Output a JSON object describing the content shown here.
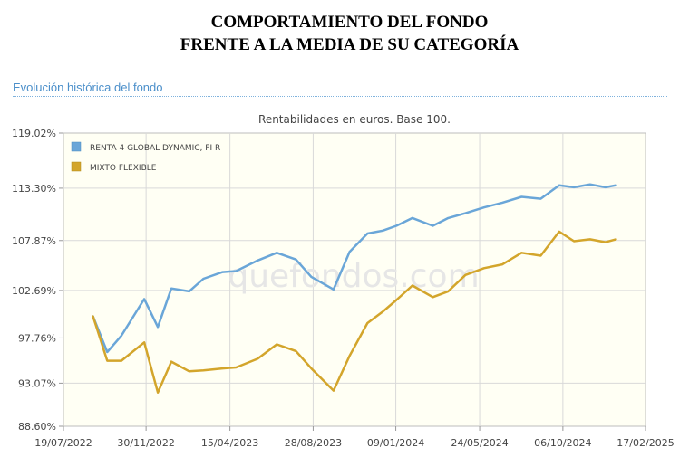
{
  "header": {
    "title_line1": "COMPORTAMIENTO DEL FONDO",
    "title_line2": "FRENTE A LA MEDIA DE SU CATEGORÍA",
    "section": "Evolución histórica del fondo",
    "watermark": "quefondos.com"
  },
  "colors": {
    "fund": "#6aa6d8",
    "category": "#d3a52b",
    "plot_bg": "#fffff4"
  },
  "chart_data": {
    "type": "line",
    "title": "Rentabilidades en euros. Base 100.",
    "x": [
      "2022-09-05",
      "2022-09-28",
      "2022-10-21",
      "2022-11-27",
      "2022-12-19",
      "2023-01-10",
      "2023-02-08",
      "2023-03-03",
      "2023-04-03",
      "2023-04-25",
      "2023-05-30",
      "2023-06-30",
      "2023-07-31",
      "2023-08-25",
      "2023-09-30",
      "2023-10-26",
      "2023-11-24",
      "2023-12-19",
      "2024-01-10",
      "2024-02-05",
      "2024-03-09",
      "2024-04-03",
      "2024-05-01",
      "2024-05-31",
      "2024-06-30",
      "2024-07-31",
      "2024-08-31",
      "2024-09-30",
      "2024-10-24",
      "2024-11-19",
      "2024-12-14",
      "2024-12-31"
    ],
    "series": [
      {
        "name": "RENTA 4 GLOBAL DYNAMIC, FI R",
        "values": [
          100.0,
          96.3,
          98.0,
          101.8,
          98.9,
          102.9,
          102.6,
          103.9,
          104.6,
          104.7,
          105.8,
          106.6,
          105.9,
          104.1,
          102.8,
          106.7,
          108.6,
          108.9,
          109.4,
          110.2,
          109.4,
          110.2,
          110.7,
          111.3,
          111.8,
          112.4,
          112.2,
          113.6,
          113.4,
          113.7,
          113.4,
          113.6
        ]
      },
      {
        "name": "MIXTO FLEXIBLE",
        "values": [
          100.0,
          95.4,
          95.4,
          97.3,
          92.1,
          95.3,
          94.3,
          94.4,
          94.6,
          94.7,
          95.6,
          97.1,
          96.4,
          94.6,
          92.3,
          95.9,
          99.3,
          100.5,
          101.7,
          103.2,
          102.0,
          102.6,
          104.3,
          105.0,
          105.4,
          106.6,
          106.3,
          108.8,
          107.8,
          108.0,
          107.7,
          108.0
        ]
      }
    ],
    "y_ticks": [
      "119.02%",
      "113.30%",
      "107.87%",
      "102.69%",
      "97.76%",
      "93.07%",
      "88.60%"
    ],
    "y_tick_values": [
      119.02,
      113.3,
      107.87,
      102.69,
      97.76,
      93.07,
      88.6
    ],
    "x_ticks": [
      "19/07/2022",
      "30/11/2022",
      "15/04/2023",
      "28/08/2023",
      "09/01/2024",
      "24/05/2024",
      "06/10/2024",
      "17/02/2025"
    ],
    "x_tick_dates": [
      "2022-07-19",
      "2022-11-30",
      "2023-04-15",
      "2023-08-28",
      "2024-01-09",
      "2024-05-24",
      "2024-10-06",
      "2025-02-17"
    ],
    "ylim": [
      88.6,
      119.02
    ],
    "xlim": [
      "2022-07-19",
      "2025-02-17"
    ],
    "grid": true,
    "legend_position": "top-left"
  }
}
